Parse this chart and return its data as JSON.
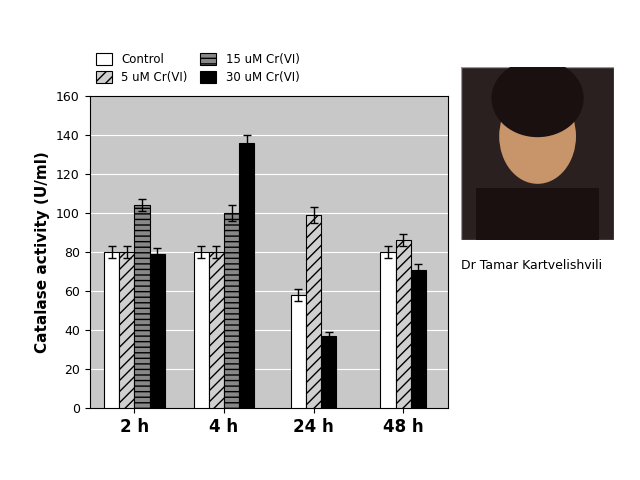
{
  "categories": [
    "2 h",
    "4 h",
    "24 h",
    "48 h"
  ],
  "series": {
    "Control": [
      80,
      80,
      58,
      80
    ],
    "5 uM Cr(VI)": [
      80,
      80,
      99,
      86
    ],
    "15 uM Cr(VI)": [
      104,
      100,
      null,
      null
    ],
    "30 uM Cr(VI)": [
      79,
      136,
      37,
      71
    ]
  },
  "errors": {
    "Control": [
      3,
      3,
      3,
      3
    ],
    "5 uM Cr(VI)": [
      3,
      3,
      4,
      3
    ],
    "15 uM Cr(VI)": [
      3,
      4,
      0,
      0
    ],
    "30 uM Cr(VI)": [
      3,
      4,
      2,
      3
    ]
  },
  "legend_labels": [
    "Control",
    "5 uM Cr(VI)",
    "15 uM Cr(VI)",
    "30 uM Cr(VI)"
  ],
  "bar_colors": [
    "white",
    "#d8d8d8",
    "#909090",
    "black"
  ],
  "bar_edgecolor": "black",
  "ylabel": "Catalase activity (U/ml)",
  "ylim": [
    0,
    160
  ],
  "yticks": [
    0,
    20,
    40,
    60,
    80,
    100,
    120,
    140,
    160
  ],
  "background_color": "#c8c8c8",
  "figsize": [
    6.4,
    4.8
  ],
  "dpi": 100,
  "subtitle": "Dr Tamar Kartvelishvili",
  "photo_color": "#3a3030"
}
